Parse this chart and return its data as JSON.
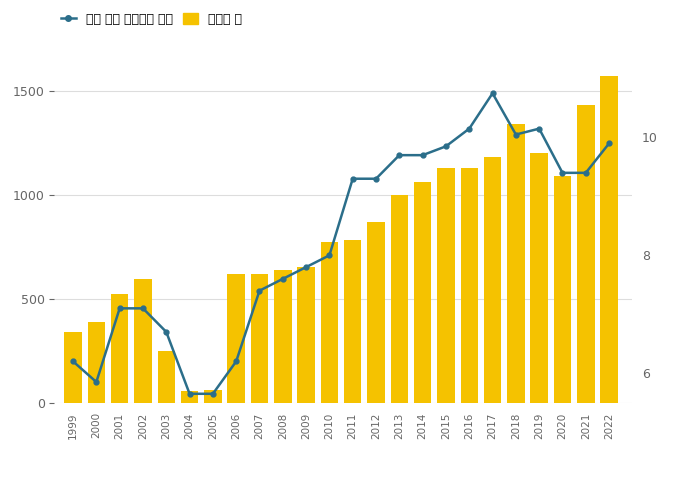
{
  "years": [
    1999,
    2000,
    2001,
    2002,
    2003,
    2004,
    2005,
    2006,
    2007,
    2008,
    2009,
    2010,
    2011,
    2012,
    2013,
    2014,
    2015,
    2016,
    2017,
    2018,
    2019,
    2020,
    2021,
    2022
  ],
  "bar_values": [
    340,
    390,
    520,
    595,
    250,
    55,
    60,
    620,
    620,
    640,
    650,
    770,
    780,
    870,
    1000,
    1060,
    1130,
    1130,
    1180,
    1340,
    1200,
    1090,
    1430,
    1570
  ],
  "line_values": [
    6.2,
    5.85,
    7.1,
    7.1,
    6.7,
    5.65,
    5.65,
    6.2,
    7.4,
    7.6,
    7.8,
    8.0,
    9.3,
    9.3,
    9.7,
    9.7,
    9.85,
    10.15,
    10.75,
    10.05,
    10.15,
    9.4,
    9.4,
    9.9
  ],
  "bar_color_golden": "#F5C200",
  "line_color": "#2B6E8A",
  "marker_color": "#2B6E8A",
  "background_color": "#FFFFFF",
  "grid_color": "#DDDDDD",
  "left_ylim": [
    0,
    1700
  ],
  "right_ylim": [
    5.5,
    11.5
  ],
  "left_yticks": [
    0,
    500,
    1000,
    1500
  ],
  "right_yticks": [
    6,
    8,
    10
  ],
  "legend_labels": [
    "전체 학생 중여학생 비율",
    "여학생 수"
  ]
}
